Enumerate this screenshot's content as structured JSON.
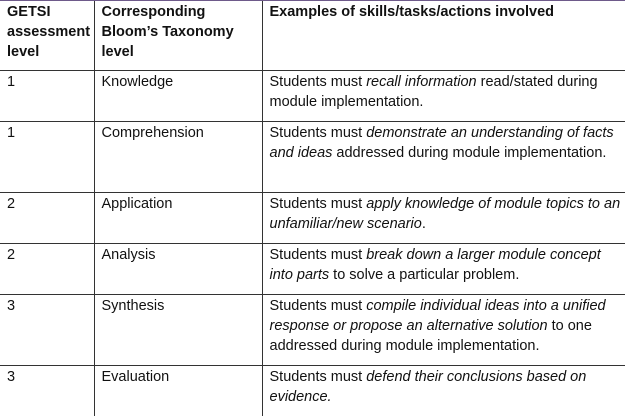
{
  "table": {
    "headers": [
      "GETSI assessment level",
      "Corresponding Bloom’s Taxonomy level",
      "Examples of skills/tasks/actions involved"
    ],
    "rows": [
      {
        "getsi": "1",
        "bloom": "Knowledge",
        "example": {
          "pre": "Students must ",
          "em": "recall information",
          "post": " read/stated during module implementation."
        }
      },
      {
        "getsi": "1",
        "bloom": "Comprehension",
        "example": {
          "pre": "Students must ",
          "em": "demonstrate an understanding of facts and ideas",
          "post": " addressed during module implementation."
        }
      },
      {
        "getsi": "2",
        "bloom": "Application",
        "example": {
          "pre": "Students must ",
          "em": "apply knowledge of module topics to an unfamiliar/new scenario",
          "post": "."
        }
      },
      {
        "getsi": "2",
        "bloom": "Analysis",
        "example": {
          "pre": "Students must ",
          "em": "break down a larger module concept into parts",
          "post": " to solve a particular problem."
        }
      },
      {
        "getsi": "3",
        "bloom": "Synthesis",
        "example": {
          "pre": "Students must ",
          "em": "compile individual ideas into a unified response or propose an alternative solution",
          "post": " to one addressed during module implementation."
        }
      },
      {
        "getsi": "3",
        "bloom": "Evaluation",
        "example": {
          "pre": "Students must ",
          "em": "defend their conclusions based on evidence.",
          "post": ""
        }
      }
    ]
  }
}
